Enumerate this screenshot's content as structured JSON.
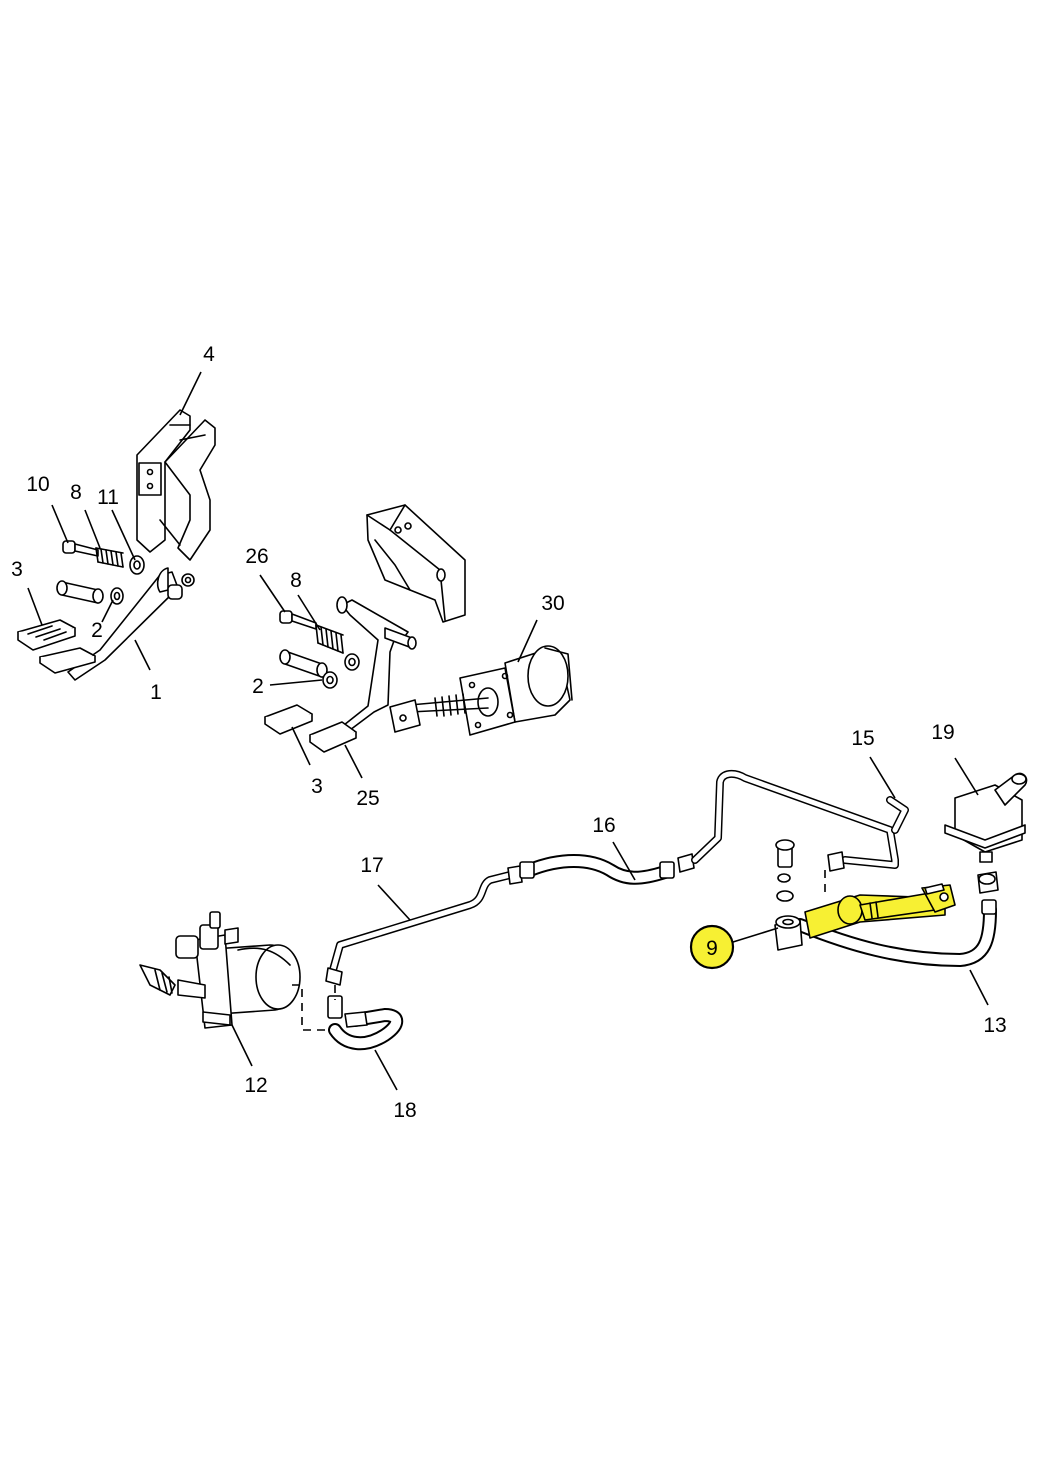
{
  "callouts": {
    "c1": "1",
    "c2a": "2",
    "c2b": "2",
    "c3a": "3",
    "c3b": "3",
    "c4": "4",
    "c8a": "8",
    "c8b": "8",
    "c9": "9",
    "c10": "10",
    "c11": "11",
    "c12": "12",
    "c13": "13",
    "c15": "15",
    "c16": "16",
    "c17": "17",
    "c18": "18",
    "c19": "19",
    "c25": "25",
    "c26": "26",
    "c30": "30"
  },
  "highlight": {
    "part": "9",
    "color": "#f7f033"
  }
}
